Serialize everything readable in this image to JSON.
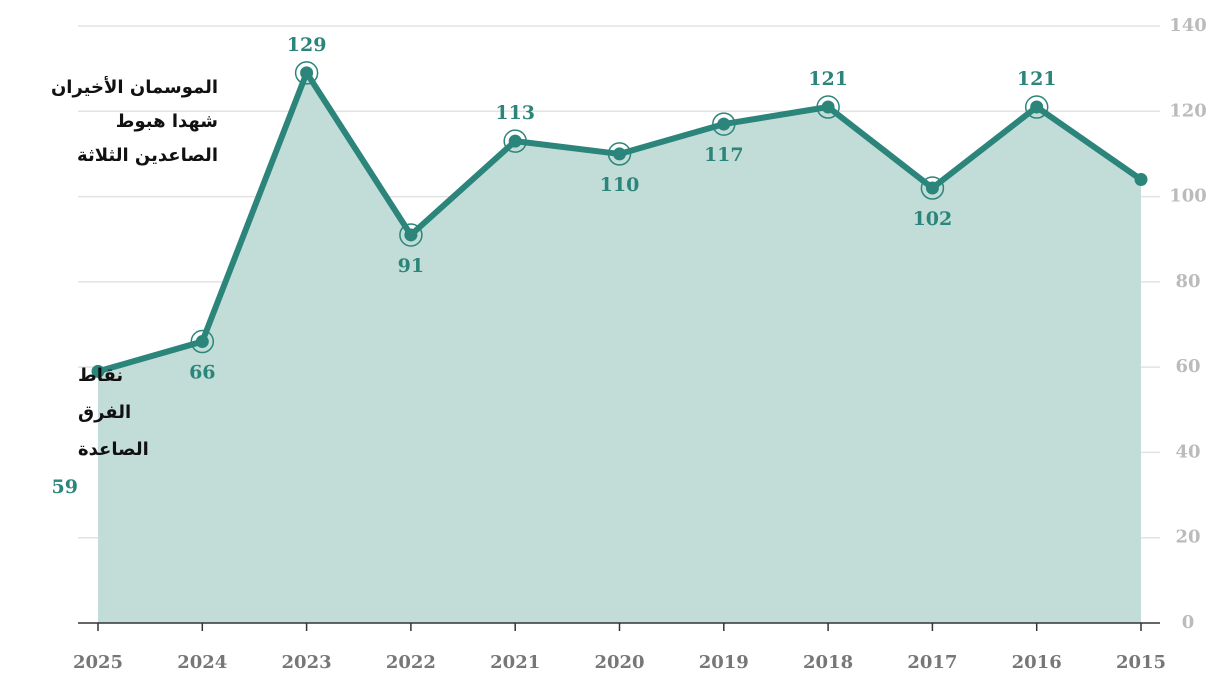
{
  "chart_data": {
    "type": "area",
    "categories": [
      "2025",
      "2024",
      "2023",
      "2022",
      "2021",
      "2020",
      "2019",
      "2018",
      "2017",
      "2016",
      "2015"
    ],
    "values": [
      59,
      66,
      129,
      91,
      113,
      110,
      117,
      121,
      102,
      121,
      104
    ],
    "value_labels": [
      "59",
      "66",
      "129",
      "91",
      "113",
      "110",
      "117",
      "121",
      "102",
      "121",
      null
    ],
    "color": "#2b857a",
    "fill_color": "#c2ddd8",
    "ylim": [
      0,
      140
    ],
    "yticks": [
      0,
      20,
      40,
      60,
      80,
      100,
      120,
      140
    ],
    "y_axis_side": "right",
    "grid": true,
    "annotations": [
      {
        "lines": [
          "نقاط",
          "الفرق",
          "الصاعدة"
        ]
      },
      {
        "lines": [
          "الموسمان الأخيران",
          "شهدا هبوط",
          "الصاعدين الثلاثة"
        ]
      }
    ]
  }
}
